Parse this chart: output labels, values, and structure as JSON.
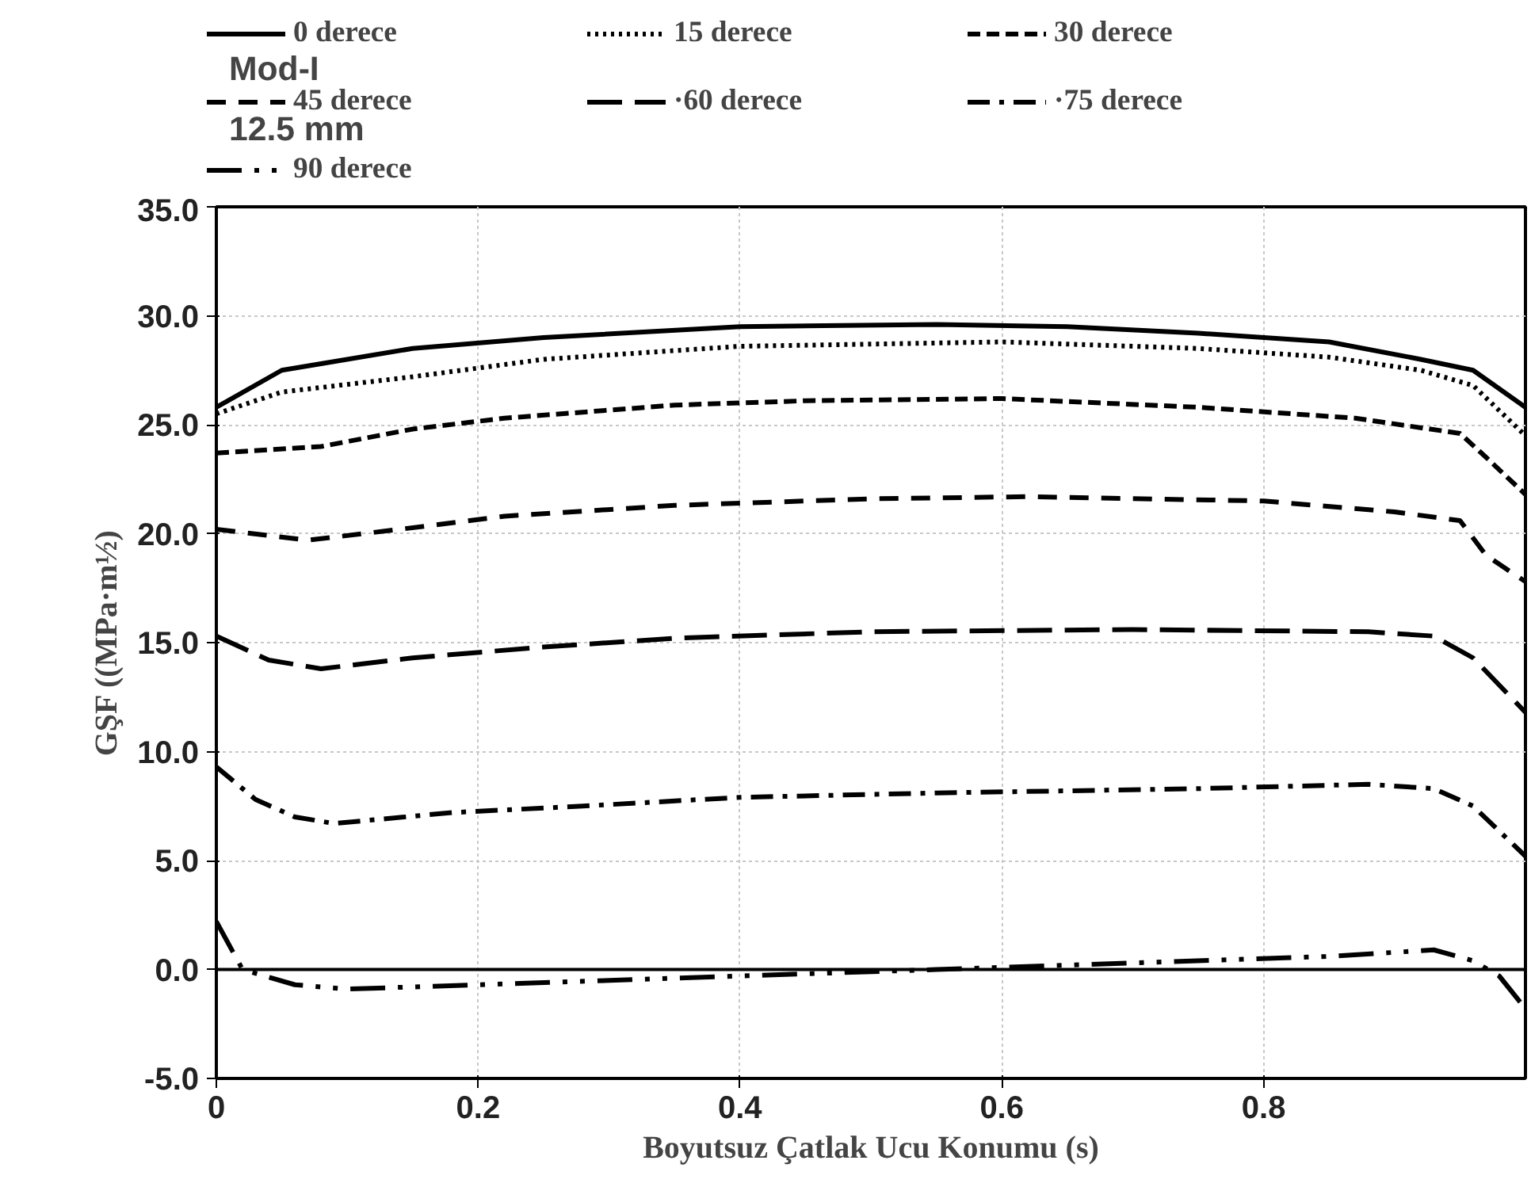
{
  "chart_data": {
    "type": "line",
    "annotations": [
      "Mod-I",
      "12.5 mm"
    ],
    "xlabel": "Boyutsuz Çatlak Ucu Konumu (s)",
    "ylabel": "GŞF ((MPa·m½)",
    "xlim": [
      0,
      1
    ],
    "ylim": [
      -5,
      35
    ],
    "xticks": [
      0,
      0.2,
      0.4,
      0.6,
      0.8
    ],
    "yticks": [
      {
        "value": -5,
        "label": "-5.0"
      },
      {
        "value": 0,
        "label": "0.0"
      },
      {
        "value": 5,
        "label": "5.0"
      },
      {
        "value": 10,
        "label": "10.0"
      },
      {
        "value": 15,
        "label": "15.0"
      },
      {
        "value": 20,
        "label": "20.0"
      },
      {
        "value": 25,
        "label": "25.0"
      },
      {
        "value": 30,
        "label": "30.0"
      },
      {
        "value": 35,
        "label": "35.0"
      }
    ],
    "grid": true,
    "legend": "top",
    "ref_lines": [
      {
        "axis": "y",
        "value": 0,
        "label": null,
        "color": "#000000",
        "line_style": "solid"
      }
    ],
    "series": [
      {
        "name": "0 derece",
        "color": "#000000",
        "line_style": "solid",
        "x": [
          0,
          0.05,
          0.08,
          0.15,
          0.25,
          0.4,
          0.55,
          0.65,
          0.75,
          0.85,
          0.92,
          0.96,
          1.0
        ],
        "values": [
          25.8,
          27.5,
          27.8,
          28.5,
          29.0,
          29.5,
          29.6,
          29.5,
          29.2,
          28.8,
          28.0,
          27.5,
          25.8
        ]
      },
      {
        "name": "15 derece",
        "color": "#000000",
        "line_style": "dotted",
        "x": [
          0,
          0.05,
          0.15,
          0.25,
          0.4,
          0.6,
          0.75,
          0.85,
          0.92,
          0.96,
          1.0
        ],
        "values": [
          25.5,
          26.5,
          27.2,
          28.0,
          28.6,
          28.8,
          28.5,
          28.1,
          27.5,
          26.8,
          24.5
        ]
      },
      {
        "name": "30 derece",
        "color": "#000000",
        "line_style": "dashed",
        "x": [
          0,
          0.08,
          0.15,
          0.22,
          0.35,
          0.45,
          0.6,
          0.75,
          0.87,
          0.95,
          0.97,
          1.0
        ],
        "values": [
          23.7,
          24.0,
          24.8,
          25.3,
          25.9,
          26.1,
          26.2,
          25.8,
          25.3,
          24.6,
          23.5,
          21.8
        ]
      },
      {
        "name": "45 derece",
        "color": "#000000",
        "line_style": "dashed_medium",
        "x": [
          0,
          0.07,
          0.14,
          0.22,
          0.35,
          0.5,
          0.62,
          0.8,
          0.9,
          0.95,
          0.97,
          1.0
        ],
        "values": [
          20.2,
          19.7,
          20.2,
          20.8,
          21.3,
          21.6,
          21.7,
          21.5,
          21.0,
          20.6,
          19.0,
          17.8
        ]
      },
      {
        "name": "·60 derece",
        "color": "#000000",
        "line_style": "longdash",
        "x": [
          0,
          0.04,
          0.08,
          0.15,
          0.25,
          0.35,
          0.5,
          0.7,
          0.88,
          0.93,
          0.96,
          1.0
        ],
        "values": [
          15.3,
          14.2,
          13.8,
          14.3,
          14.8,
          15.2,
          15.5,
          15.6,
          15.5,
          15.3,
          14.3,
          11.8
        ]
      },
      {
        "name": "·75 derece",
        "color": "#000000",
        "line_style": "dashdot",
        "x": [
          0,
          0.03,
          0.06,
          0.09,
          0.18,
          0.28,
          0.4,
          0.55,
          0.75,
          0.88,
          0.93,
          0.96,
          1.0
        ],
        "values": [
          9.3,
          7.8,
          7.0,
          6.7,
          7.2,
          7.5,
          7.9,
          8.1,
          8.3,
          8.5,
          8.3,
          7.5,
          5.2
        ]
      },
      {
        "name": "90 derece",
        "color": "#000000",
        "line_style": "longdashdotdot",
        "x": [
          0,
          0.02,
          0.06,
          0.1,
          0.2,
          0.35,
          0.45,
          0.55,
          0.7,
          0.85,
          0.93,
          0.96,
          0.98,
          1.0
        ],
        "values": [
          2.2,
          0.0,
          -0.7,
          -0.9,
          -0.7,
          -0.4,
          -0.2,
          0.0,
          0.3,
          0.6,
          0.9,
          0.4,
          -0.3,
          -1.8
        ]
      }
    ]
  }
}
